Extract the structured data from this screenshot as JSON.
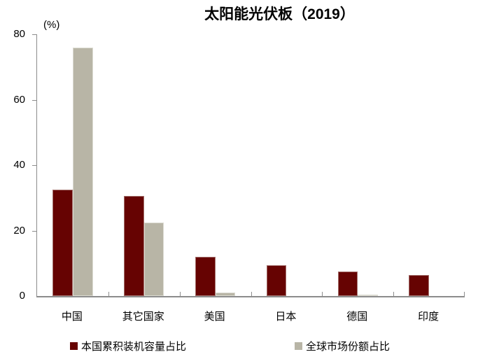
{
  "chart_data": {
    "type": "bar",
    "title": "太阳能光伏板（2019）",
    "unit_label": "(%)",
    "categories": [
      "中国",
      "其它国家",
      "美国",
      "日本",
      "德国",
      "印度"
    ],
    "series": [
      {
        "name": "本国累积装机容量占比",
        "color": "#660302",
        "edge_color": "#a4716d",
        "values": [
          32.5,
          30.5,
          12,
          9.5,
          7.5,
          6.5
        ]
      },
      {
        "name": "全球市场份额占比",
        "color": "#b8b5a6",
        "edge_color": "#dcdbd2",
        "values": [
          76,
          22.5,
          1,
          0,
          0.3,
          0
        ]
      }
    ],
    "ylim": [
      0,
      80
    ],
    "yticks": [
      0,
      20,
      40,
      60,
      80
    ],
    "grid": false,
    "legend_position": "bottom",
    "axis_color": "#8c8c8c",
    "text_color": "#000000"
  }
}
